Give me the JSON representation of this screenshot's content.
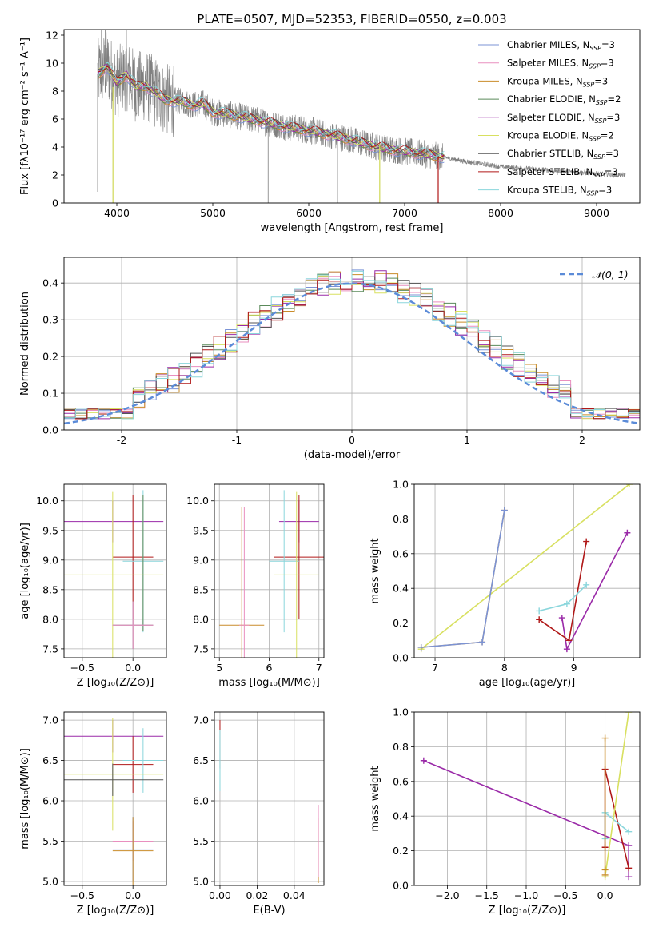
{
  "figure_title": "PLATE=0507, MJD=52353, FIBERID=0550, z=0.003",
  "models": [
    {
      "name": "Chabrier MILES",
      "nssp": "3",
      "color": "#7b93d6"
    },
    {
      "name": "Salpeter MILES",
      "nssp": "3",
      "color": "#e98fbf"
    },
    {
      "name": "Kroupa MILES",
      "nssp": "3",
      "color": "#c98c2a"
    },
    {
      "name": "Chabrier ELODIE",
      "nssp": "2",
      "color": "#5a8a5a"
    },
    {
      "name": "Salpeter ELODIE",
      "nssp": "3",
      "color": "#9a2aa8"
    },
    {
      "name": "Kroupa ELODIE",
      "nssp": "2",
      "color": "#d8e060"
    },
    {
      "name": "Chabrier STELIB",
      "nssp": "3",
      "color": "#555555"
    },
    {
      "name": "Salpeter STELIB",
      "nssp": "3",
      "color": "#b01818"
    },
    {
      "name": "Kroupa STELIB",
      "nssp": "3",
      "color": "#8ad6dc"
    }
  ],
  "nssp_label": "N",
  "nssp_sub": "SSP",
  "chart_data": [
    {
      "id": "spectrum",
      "type": "line",
      "xlabel": "wavelength [Angstrom, rest frame]",
      "ylabel": "Flux [fλ10⁻¹⁷ erg cm⁻² s⁻¹ A⁻¹]",
      "xlim": [
        3450,
        9450
      ],
      "ylim": [
        0,
        12.4
      ],
      "xticks": [
        4000,
        5000,
        6000,
        7000,
        8000,
        9000
      ],
      "yticks": [
        0,
        2,
        4,
        6,
        8,
        10,
        12
      ],
      "continuum": [
        [
          3800,
          9.2
        ],
        [
          3900,
          9.8
        ],
        [
          4000,
          8.6
        ],
        [
          4100,
          9.2
        ],
        [
          4200,
          8.3
        ],
        [
          4300,
          8.4
        ],
        [
          4400,
          7.9
        ],
        [
          4500,
          7.4
        ],
        [
          4600,
          7.3
        ],
        [
          4700,
          7.2
        ],
        [
          4800,
          7.0
        ],
        [
          4900,
          7.1
        ],
        [
          5000,
          6.5
        ],
        [
          5200,
          6.3
        ],
        [
          5400,
          6.0
        ],
        [
          5600,
          5.7
        ],
        [
          5800,
          5.4
        ],
        [
          6000,
          5.2
        ],
        [
          6200,
          4.9
        ],
        [
          6400,
          4.6
        ],
        [
          6600,
          4.2
        ],
        [
          6800,
          3.9
        ],
        [
          7000,
          3.7
        ],
        [
          7200,
          3.5
        ],
        [
          7400,
          3.3
        ],
        [
          7600,
          3.0
        ],
        [
          7800,
          2.8
        ],
        [
          8000,
          2.6
        ],
        [
          8200,
          2.5
        ],
        [
          8400,
          2.4
        ],
        [
          8600,
          2.3
        ],
        [
          8800,
          2.2
        ],
        [
          9000,
          2.1
        ],
        [
          9200,
          2.0
        ]
      ],
      "spikes": [
        [
          3800,
          0.8
        ],
        [
          3840,
          12.4
        ],
        [
          3880,
          12.4
        ],
        [
          3960,
          0
        ],
        [
          4100,
          12.4
        ],
        [
          5577,
          0
        ],
        [
          6300,
          0
        ],
        [
          6712,
          12.4
        ],
        [
          6740,
          0
        ]
      ]
    },
    {
      "id": "residuals",
      "type": "histogram",
      "xlabel": "(data-model)/error",
      "ylabel": "Normed distribution",
      "xlim": [
        -2.5,
        2.5
      ],
      "ylim": [
        0,
        0.47
      ],
      "xticks": [
        -2,
        -1,
        0,
        1,
        2
      ],
      "yticks": [
        0,
        0.1,
        0.2,
        0.3,
        0.4
      ],
      "legend": "𝒩(0, 1)",
      "normal_color": "#5b8bd8",
      "bin_width": 0.1
    },
    {
      "id": "age_vs_Z",
      "type": "scatter",
      "xlabel": "Z [log₁₀(Z/Z⊙)]",
      "ylabel": "age  [log₁₀(age/yr)]",
      "xlim": [
        -0.68,
        0.33
      ],
      "ylim": [
        7.35,
        10.28
      ],
      "xticks": [
        -0.5,
        0,
        0.5
      ],
      "xticklabels": [
        "−0.5",
        "0.0",
        ""
      ],
      "yticks": [
        7.5,
        8.0,
        8.5,
        9.0,
        9.5,
        10.0
      ],
      "points": [
        {
          "m": 4,
          "x": -0.2,
          "y": 9.65,
          "ex": 0.5,
          "ey": 0.35
        },
        {
          "m": 7,
          "x": 0.0,
          "y": 9.05,
          "ex": 0.2,
          "ey": 1.05
        },
        {
          "m": 8,
          "x": 0.1,
          "y": 8.98,
          "ex": 0.2,
          "ey": 1.2
        },
        {
          "m": 3,
          "x": 0.1,
          "y": 8.95,
          "ex": 0.2,
          "ey": 1.15
        },
        {
          "m": 5,
          "x": -0.2,
          "y": 8.75,
          "ex": 0.5,
          "ey": 1.4
        },
        {
          "m": 2,
          "x": 0.0,
          "y": 7.9,
          "ex": 0.2,
          "ey": 0.4
        },
        {
          "m": 0,
          "x": 0.0,
          "y": 7.9,
          "ex": 0.2,
          "ey": 0.4
        },
        {
          "m": 1,
          "x": 0.0,
          "y": 7.9,
          "ex": 0.2,
          "ey": 0.4
        }
      ]
    },
    {
      "id": "age_vs_mass",
      "type": "scatter",
      "xlabel": "mass [log₁₀(M/M⊙)]",
      "ylabel": "",
      "xlim": [
        4.9,
        7.1
      ],
      "ylim": [
        7.35,
        10.28
      ],
      "xticks": [
        5,
        6,
        7
      ],
      "yticks": [
        7.5,
        8.0,
        8.5,
        9.0,
        9.5,
        10.0
      ],
      "points": [
        {
          "m": 4,
          "x": 6.6,
          "y": 9.65,
          "ex": 0.4,
          "ey": 0.35
        },
        {
          "m": 7,
          "x": 6.6,
          "y": 9.05,
          "ex": 0.5,
          "ey": 1.05
        },
        {
          "m": 8,
          "x": 6.3,
          "y": 8.98,
          "ex": 0.3,
          "ey": 1.2
        },
        {
          "m": 5,
          "x": 6.55,
          "y": 8.75,
          "ex": 0.45,
          "ey": 1.4
        },
        {
          "m": 2,
          "x": 5.45,
          "y": 7.9,
          "ex": 0.45,
          "ey": 2.0
        },
        {
          "m": 1,
          "x": 5.5,
          "y": 7.9,
          "ex": 0.1,
          "ey": 2.0
        }
      ]
    },
    {
      "id": "weight_vs_age",
      "type": "line",
      "xlabel": "age  [log₁₀(age/yr)]",
      "ylabel": "mass weight",
      "xlim": [
        6.7,
        9.95
      ],
      "ylim": [
        0,
        1
      ],
      "xticks": [
        7,
        8,
        9
      ],
      "yticks": [
        0.0,
        0.2,
        0.4,
        0.6,
        0.8,
        1.0
      ],
      "series": [
        {
          "m": 5,
          "x": [
            6.8,
            9.8
          ],
          "y": [
            0.05,
            1.0
          ]
        },
        {
          "m": 2,
          "x": [
            6.8,
            7.68,
            8.0
          ],
          "y": [
            0.06,
            0.09,
            0.85
          ]
        },
        {
          "m": 0,
          "x": [
            6.8,
            7.68,
            8.0
          ],
          "y": [
            0.06,
            0.09,
            0.85
          ]
        },
        {
          "m": 4,
          "x": [
            8.83,
            8.9,
            9.77
          ],
          "y": [
            0.23,
            0.05,
            0.72
          ]
        },
        {
          "m": 7,
          "x": [
            8.5,
            8.93,
            9.18
          ],
          "y": [
            0.22,
            0.1,
            0.67
          ]
        },
        {
          "m": 8,
          "x": [
            8.5,
            8.9,
            9.18
          ],
          "y": [
            0.27,
            0.31,
            0.42
          ]
        }
      ]
    },
    {
      "id": "mass_vs_Z",
      "type": "scatter",
      "xlabel": "Z [log₁₀(Z/Z⊙)]",
      "ylabel": "mass [log₁₀(M/M⊙)]",
      "xlim": [
        -0.68,
        0.33
      ],
      "ylim": [
        4.95,
        7.1
      ],
      "xticks": [
        -0.5,
        0,
        0.5
      ],
      "xticklabels": [
        "−0.5",
        "0.0",
        ""
      ],
      "yticks": [
        5.0,
        5.5,
        6.0,
        6.5,
        7.0
      ],
      "points": [
        {
          "m": 4,
          "x": -0.2,
          "y": 6.8,
          "ex": 0.5,
          "ey": 0.2
        },
        {
          "m": 7,
          "x": 0.0,
          "y": 6.45,
          "ex": 0.2,
          "ey": 0.35
        },
        {
          "m": 8,
          "x": 0.1,
          "y": 6.5,
          "ex": 0.2,
          "ey": 0.4
        },
        {
          "m": 5,
          "x": -0.2,
          "y": 6.33,
          "ex": 0.5,
          "ey": 0.7
        },
        {
          "m": 6,
          "x": -0.2,
          "y": 6.26,
          "ex": 0.5,
          "ey": 0.2
        },
        {
          "m": 1,
          "x": 0.0,
          "y": 5.5,
          "ex": 0.2,
          "ey": 0.25
        },
        {
          "m": 0,
          "x": 0.0,
          "y": 5.4,
          "ex": 0.2,
          "ey": 0.4
        },
        {
          "m": 2,
          "x": 0.0,
          "y": 5.38,
          "ex": 0.2,
          "ey": 0.42
        }
      ]
    },
    {
      "id": "mass_vs_EBV",
      "type": "scatter",
      "xlabel": "E(B-V)",
      "ylabel": "",
      "xlim": [
        -0.003,
        0.056
      ],
      "ylim": [
        4.95,
        7.1
      ],
      "xticks": [
        0,
        0.02,
        0.04
      ],
      "xticklabels": [
        "0.00",
        "0.02",
        "0.04"
      ],
      "yticks": [
        5.0,
        5.5,
        6.0,
        6.5,
        7.0
      ],
      "points": [
        {
          "m": 7,
          "x": 0.0,
          "y": 6.7,
          "ex": 0.0,
          "ey": 0.3
        },
        {
          "m": 8,
          "x": 0.0,
          "y": 6.5,
          "ex": 0.0,
          "ey": 0.38
        },
        {
          "m": 2,
          "x": 0.053,
          "y": 5.38,
          "ex": 0.0,
          "ey": 0.4
        },
        {
          "m": 1,
          "x": 0.053,
          "y": 5.5,
          "ex": 0.0,
          "ey": 0.45
        }
      ]
    },
    {
      "id": "weight_vs_Z",
      "type": "line",
      "xlabel": "Z [log₁₀(Z/Z⊙)]",
      "ylabel": "mass weight",
      "xlim": [
        -2.42,
        0.44
      ],
      "ylim": [
        0,
        1
      ],
      "xticks": [
        -2.0,
        -1.5,
        -1.0,
        -0.5,
        0.0
      ],
      "xticklabels": [
        "−2.0",
        "−1.5",
        "−1.0",
        "−0.5",
        "0.0"
      ],
      "yticks": [
        0.0,
        0.2,
        0.4,
        0.6,
        0.8,
        1.0
      ],
      "series": [
        {
          "m": 4,
          "x": [
            -2.3,
            0.3,
            0.3
          ],
          "y": [
            0.72,
            0.23,
            0.05
          ]
        },
        {
          "m": 7,
          "x": [
            0.0,
            0.0,
            0.3
          ],
          "y": [
            0.22,
            0.67,
            0.1
          ]
        },
        {
          "m": 8,
          "x": [
            0.0,
            0.0,
            0.3
          ],
          "y": [
            0.27,
            0.42,
            0.31
          ]
        },
        {
          "m": 5,
          "x": [
            0.0,
            0.3
          ],
          "y": [
            0.05,
            1.0
          ]
        },
        {
          "m": 2,
          "x": [
            0.0,
            0.0,
            0.0
          ],
          "y": [
            0.06,
            0.09,
            0.85
          ]
        }
      ]
    }
  ]
}
